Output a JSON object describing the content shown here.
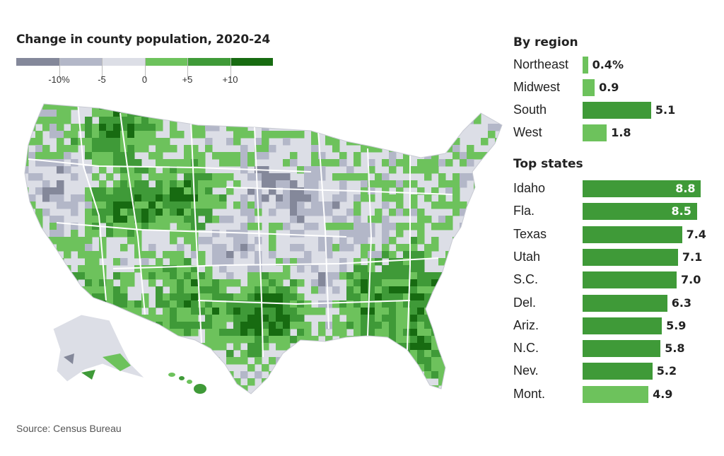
{
  "map": {
    "title": "Change in county population, 2020-24",
    "legend": {
      "bins": [
        {
          "color": "#84889a"
        },
        {
          "color": "#b3b7c8"
        },
        {
          "color": "#dcdee6"
        },
        {
          "color": "#6dc25c"
        },
        {
          "color": "#3f9a38"
        },
        {
          "color": "#176b11"
        }
      ],
      "tick_labels": [
        "-10%",
        "-5",
        "0",
        "+5",
        "+10"
      ]
    }
  },
  "colors": {
    "land_base": "#dcdee6",
    "state_border": "#ffffff",
    "bar_dark": "#3f9a38",
    "bar_light": "#6dc25c"
  },
  "chart_data": [
    {
      "type": "bar",
      "title": "By region",
      "categories": [
        "Northeast",
        "Midwest",
        "South",
        "West"
      ],
      "values": [
        0.4,
        0.9,
        5.1,
        1.8
      ],
      "value_labels": [
        "0.4%",
        "0.9",
        "5.1",
        "1.8"
      ],
      "bar_colors": [
        "#6dc25c",
        "#6dc25c",
        "#3f9a38",
        "#6dc25c"
      ]
    },
    {
      "type": "bar",
      "title": "Top states",
      "categories": [
        "Idaho",
        "Fla.",
        "Texas",
        "Utah",
        "S.C.",
        "Del.",
        "Ariz.",
        "N.C.",
        "Nev.",
        "Mont."
      ],
      "values": [
        8.8,
        8.5,
        7.4,
        7.1,
        7.0,
        6.3,
        5.9,
        5.8,
        5.2,
        4.9
      ],
      "value_labels": [
        "8.8",
        "8.5",
        "7.4",
        "7.1",
        "7.0",
        "6.3",
        "5.9",
        "5.8",
        "5.2",
        "4.9"
      ],
      "bar_colors": [
        "#3f9a38",
        "#3f9a38",
        "#3f9a38",
        "#3f9a38",
        "#3f9a38",
        "#3f9a38",
        "#3f9a38",
        "#3f9a38",
        "#3f9a38",
        "#6dc25c"
      ]
    }
  ],
  "source": "Source: Census Bureau"
}
